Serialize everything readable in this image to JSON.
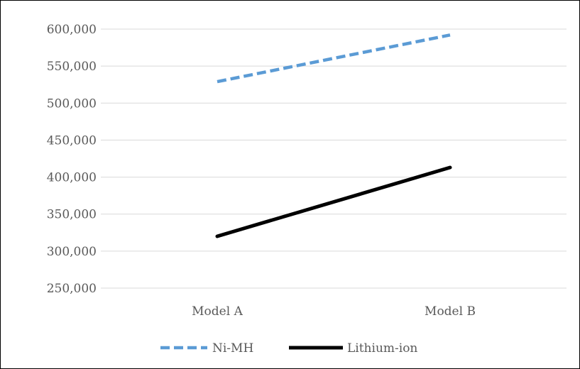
{
  "chart_data": {
    "type": "line",
    "title": "",
    "xlabel": "",
    "ylabel": "",
    "categories": [
      "Model A",
      "Model B"
    ],
    "ylim": [
      250000,
      600000
    ],
    "yticks": [
      250000,
      300000,
      350000,
      400000,
      450000,
      500000,
      550000,
      600000
    ],
    "ytick_labels": [
      "250,000",
      "300,000",
      "350,000",
      "400,000",
      "450,000",
      "500,000",
      "550,000",
      "600,000"
    ],
    "grid": true,
    "legend_position": "bottom",
    "series": [
      {
        "name": "Ni-MH",
        "values": [
          529000,
          592000
        ],
        "color": "#5b9bd5",
        "line_style": "dashed"
      },
      {
        "name": "Lithium-ion",
        "values": [
          320000,
          413000
        ],
        "color": "#000000",
        "line_style": "solid"
      }
    ]
  }
}
